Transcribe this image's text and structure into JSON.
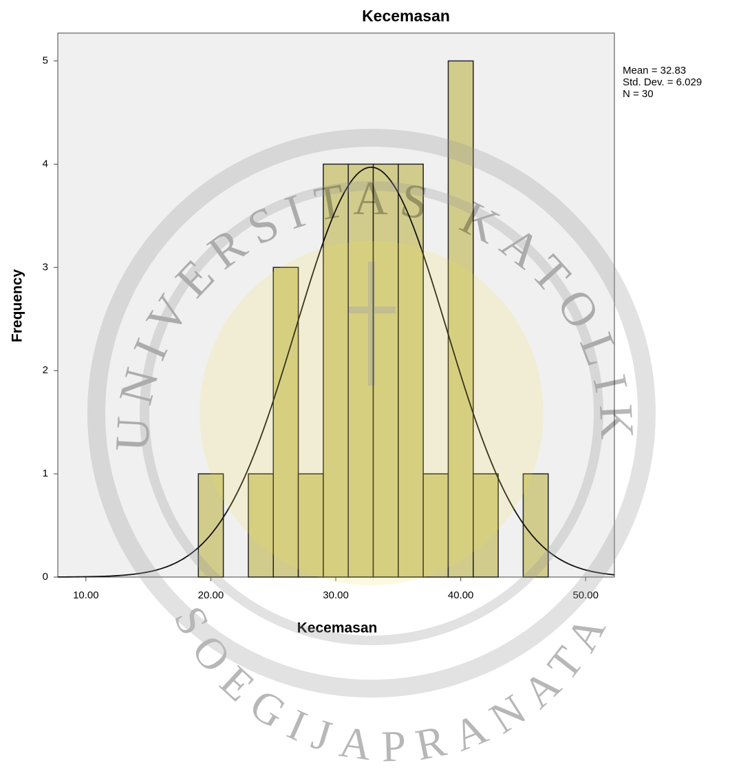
{
  "chart_data": {
    "type": "histogram",
    "title": "Kecemasan",
    "x_label": "Kecemasan",
    "y_label": "Frequency",
    "bins": [
      19,
      21,
      23,
      25,
      27,
      29,
      31,
      33,
      35,
      37,
      39,
      41,
      43,
      45,
      47
    ],
    "values": [
      1,
      0,
      1,
      3,
      1,
      4,
      4,
      4,
      4,
      1,
      5,
      1,
      0,
      1
    ],
    "color": "#d2cc8c",
    "background": "#f0f0f0",
    "grid": false,
    "xlim": [
      7.75,
      52.3
    ],
    "xticks": [
      {
        "value": 10,
        "label": "10.00"
      },
      {
        "value": 20,
        "label": "20.00"
      },
      {
        "value": 30,
        "label": "30.00"
      },
      {
        "value": 40,
        "label": "40.00"
      },
      {
        "value": 50,
        "label": "50.00"
      }
    ],
    "ylim": [
      0,
      5.27
    ],
    "yticks": [
      0,
      1,
      2,
      3,
      4,
      5
    ],
    "normal_curve": {
      "mean": 32.83,
      "sd": 6.029,
      "n": 30
    },
    "annotations": [
      "Mean = 32.83",
      "Std. Dev. = 6.029",
      "N = 30"
    ],
    "watermark": [
      "UNIVERSITAS KATOLIK",
      "SOEGIJAPRANATA"
    ]
  }
}
